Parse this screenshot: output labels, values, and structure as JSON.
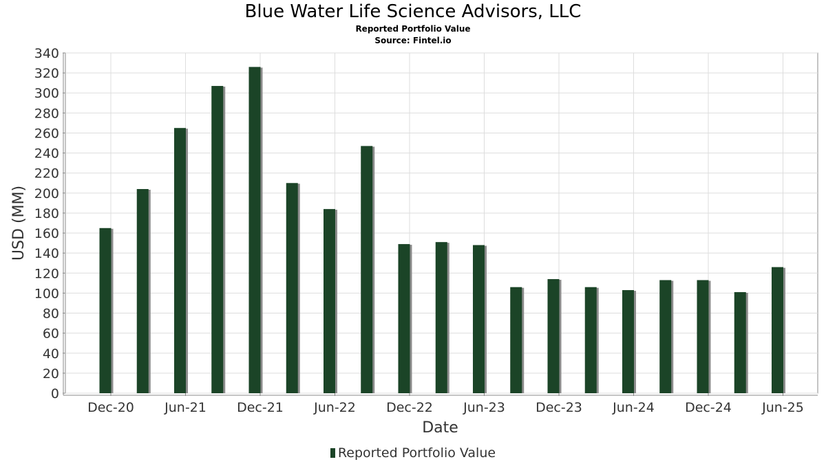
{
  "header": {
    "title": "Blue Water Life Science Advisors, LLC",
    "subtitle": "Reported Portfolio Value",
    "source": "Source: Fintel.io"
  },
  "legend": {
    "label": "Reported Portfolio Value"
  },
  "colors": {
    "bar": "#1b4427",
    "shadow": "#8c8c8c",
    "grid": "#dddddd",
    "axis": "#888888"
  },
  "chart_data": {
    "type": "bar",
    "title": "Blue Water Life Science Advisors, LLC",
    "xlabel": "Date",
    "ylabel": "USD (MM)",
    "ylim": [
      0,
      340
    ],
    "yticks": [
      0,
      20,
      40,
      60,
      80,
      100,
      120,
      140,
      160,
      180,
      200,
      220,
      240,
      260,
      280,
      300,
      320,
      340
    ],
    "xtick_labels": [
      "Dec-20",
      "Jun-21",
      "Dec-21",
      "Jun-22",
      "Dec-22",
      "Jun-23",
      "Dec-23",
      "Jun-24",
      "Dec-24",
      "Jun-25"
    ],
    "grid": true,
    "legend_position": "bottom",
    "categories": [
      "Dec-20",
      "Mar-21",
      "Jun-21",
      "Sep-21",
      "Dec-21",
      "Mar-22",
      "Jun-22",
      "Sep-22",
      "Dec-22",
      "Mar-23",
      "Jun-23",
      "Sep-23",
      "Dec-23",
      "Mar-24",
      "Jun-24",
      "Sep-24",
      "Dec-24",
      "Mar-25",
      "Jun-25"
    ],
    "series": [
      {
        "name": "Reported Portfolio Value",
        "values": [
          165,
          204,
          265,
          307,
          326,
          210,
          184,
          247,
          149,
          151,
          148,
          106,
          114,
          106,
          103,
          113,
          113,
          101,
          126
        ]
      }
    ]
  }
}
